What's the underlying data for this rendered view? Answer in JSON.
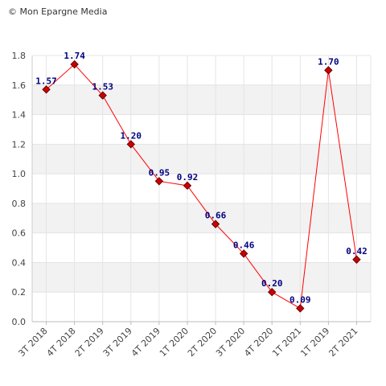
{
  "credit": "© Mon Epargne Media",
  "chart_data": {
    "type": "line",
    "title": "",
    "xlabel": "",
    "ylabel": "",
    "categories": [
      "3T 2018",
      "4T 2018",
      "2T 2019",
      "3T 2019",
      "4T 2019",
      "1T 2020",
      "2T 2020",
      "3T 2020",
      "4T 2020",
      "1T 2021",
      "1T 2019",
      "2T 2021"
    ],
    "series": [
      {
        "values": [
          1.57,
          1.74,
          1.53,
          1.2,
          0.95,
          0.92,
          0.66,
          0.46,
          0.2,
          0.09,
          1.7,
          0.42
        ],
        "labels": [
          "1.57",
          "1.74",
          "1.53",
          "1.20",
          "0.95",
          "0.92",
          "0.66",
          "0.46",
          "0.20",
          "0.09",
          "1.70",
          "0.42"
        ]
      }
    ],
    "ylim": [
      0,
      1.8
    ],
    "yticks": [
      "0.0",
      "0.2",
      "0.4",
      "0.6",
      "0.8",
      "1.0",
      "1.2",
      "1.4",
      "1.6",
      "1.8"
    ],
    "grid": true,
    "colors": {
      "line": "#ff0000",
      "marker_fill": "#cc0000",
      "marker_stroke": "#660000",
      "band": "#f2f2f2",
      "label": "#000080"
    }
  }
}
